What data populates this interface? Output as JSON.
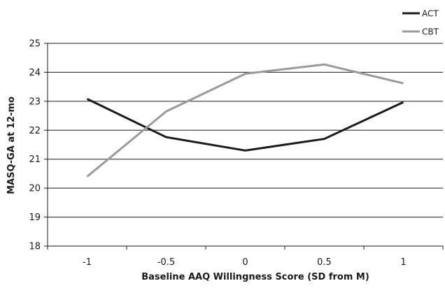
{
  "chart_data": {
    "type": "line",
    "title": "",
    "xlabel": "Baseline AAQ Willingness Score (SD from M)",
    "ylabel": "MASQ-GA at 12-mo",
    "categories": [
      "-1",
      "-0.5",
      "0",
      "0.5",
      "1"
    ],
    "ylim": [
      18,
      25
    ],
    "yticks": [
      "18",
      "19",
      "20",
      "21",
      "22",
      "23",
      "24",
      "25"
    ],
    "grid": "horizontal",
    "legend_position": "top-right",
    "series": [
      {
        "name": "ACT",
        "color": "#1a1a1a",
        "values": [
          23.08,
          21.76,
          21.3,
          21.7,
          22.97
        ]
      },
      {
        "name": "CBT",
        "color": "#9a9a9a",
        "values": [
          20.4,
          22.65,
          23.95,
          24.27,
          23.62
        ]
      }
    ]
  }
}
